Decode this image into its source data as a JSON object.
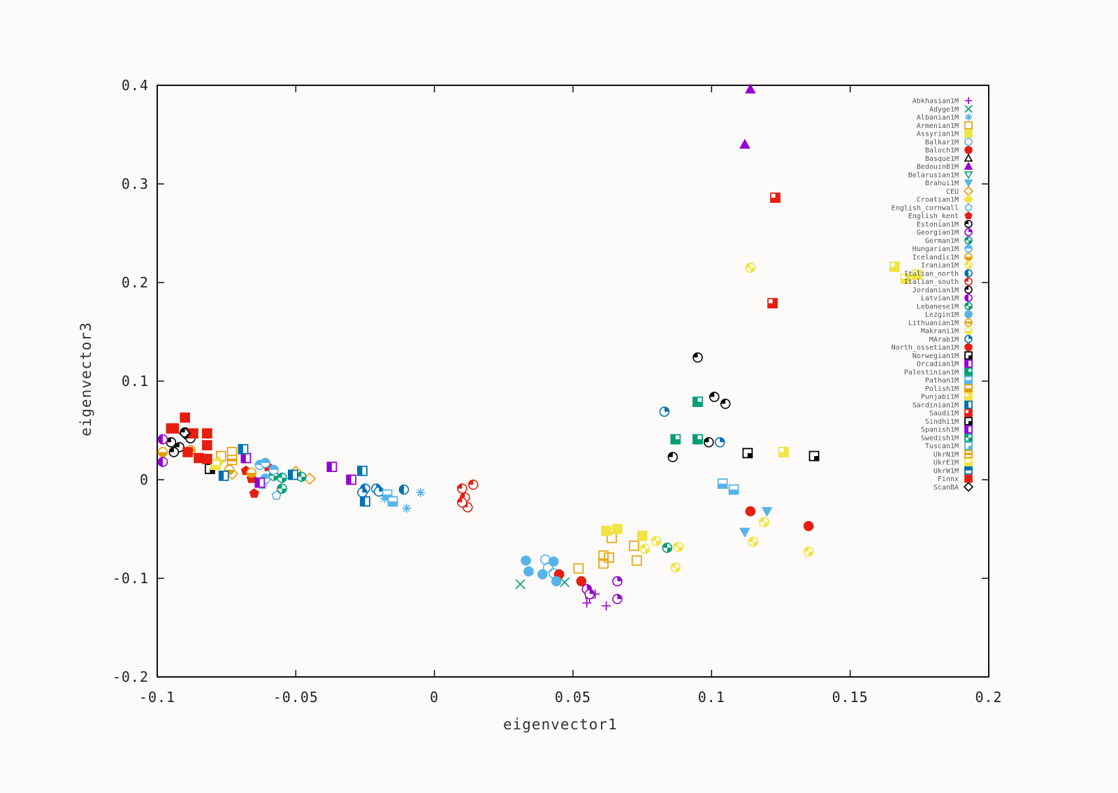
{
  "chart_data": {
    "type": "scatter",
    "title": "",
    "xlabel": "eigenvector1",
    "ylabel": "eigenvector3",
    "xlim": [
      -0.1,
      0.2
    ],
    "ylim": [
      -0.2,
      0.4
    ],
    "xticks": [
      -0.1,
      -0.05,
      0,
      0.05,
      0.1,
      0.15,
      0.2
    ],
    "xtick_labels": [
      "-0.1",
      "-0.05",
      "0",
      "0.05",
      "0.1",
      "0.15",
      "0.2"
    ],
    "yticks": [
      -0.2,
      -0.1,
      0,
      0.1,
      0.2,
      0.3,
      0.4
    ],
    "ytick_labels": [
      "-0.2",
      "-0.1",
      "0",
      "0.1",
      "0.2",
      "0.3",
      "0.4"
    ],
    "grid": false,
    "legend_position": "top-right",
    "series": [
      {
        "name": "Abkhasian1M",
        "marker": "plus",
        "color": "#9400d3",
        "points": [
          [
            0.056,
            -0.12
          ],
          [
            0.058,
            -0.116
          ],
          [
            0.055,
            -0.125
          ],
          [
            0.062,
            -0.128
          ]
        ]
      },
      {
        "name": "Adyge1M",
        "marker": "cross",
        "color": "#009e73",
        "points": [
          [
            0.031,
            -0.106
          ],
          [
            0.047,
            -0.104
          ]
        ]
      },
      {
        "name": "Albanian1M",
        "marker": "star",
        "color": "#56b4e9",
        "points": [
          [
            -0.005,
            -0.013
          ],
          [
            -0.01,
            -0.029
          ],
          [
            -0.018,
            -0.019
          ]
        ]
      },
      {
        "name": "Armenian1M",
        "marker": "square-open",
        "color": "#e69f00",
        "points": [
          [
            0.052,
            -0.09
          ],
          [
            0.061,
            -0.077
          ],
          [
            0.061,
            -0.085
          ],
          [
            0.064,
            -0.059
          ],
          [
            0.063,
            -0.079
          ],
          [
            0.072,
            -0.067
          ],
          [
            0.073,
            -0.082
          ],
          [
            -0.077,
            0.024
          ],
          [
            -0.073,
            0.028
          ]
        ]
      },
      {
        "name": "Assyrian1M",
        "marker": "square-filled",
        "color": "#f0e442",
        "points": [
          [
            0.062,
            -0.052
          ],
          [
            0.066,
            -0.05
          ],
          [
            0.075,
            -0.057
          ]
        ]
      },
      {
        "name": "Balkar1M",
        "marker": "circle-open",
        "color": "#56b4e9",
        "points": [
          [
            0.04,
            -0.081
          ],
          [
            0.041,
            -0.089
          ],
          [
            0.043,
            -0.095
          ]
        ]
      },
      {
        "name": "Baloch1M",
        "marker": "circle-filled",
        "color": "#e51e10",
        "points": [
          [
            0.114,
            -0.032
          ],
          [
            0.135,
            -0.047
          ],
          [
            0.045,
            -0.096
          ],
          [
            0.053,
            -0.103
          ]
        ]
      },
      {
        "name": "Basque1M",
        "marker": "triangle-open",
        "color": "#000000",
        "points": []
      },
      {
        "name": "BedouinB1M",
        "marker": "triangle-filled",
        "color": "#9400d3",
        "points": [
          [
            0.114,
            0.396
          ],
          [
            0.112,
            0.34
          ]
        ]
      },
      {
        "name": "Belarusian1M",
        "marker": "triangle-down-open",
        "color": "#009e73",
        "points": []
      },
      {
        "name": "Brahui1M",
        "marker": "triangle-down-filled",
        "color": "#56b4e9",
        "points": [
          [
            0.12,
            -0.032
          ],
          [
            0.112,
            -0.053
          ]
        ]
      },
      {
        "name": "CEU",
        "marker": "diamond-open",
        "color": "#e69f00",
        "points": [
          [
            -0.05,
            0.008
          ],
          [
            -0.045,
            0.001
          ],
          [
            -0.073,
            0.006
          ]
        ]
      },
      {
        "name": "Croatian1M",
        "marker": "diamond-filled",
        "color": "#f0e442",
        "points": [
          [
            -0.078,
            0.018
          ]
        ]
      },
      {
        "name": "English_cornwall",
        "marker": "pentagon-open",
        "color": "#56b4e9",
        "points": [
          [
            -0.057,
            -0.016
          ],
          [
            -0.062,
            -0.005
          ]
        ]
      },
      {
        "name": "English_kent",
        "marker": "pentagon-filled",
        "color": "#e51e10",
        "points": [
          [
            -0.065,
            -0.014
          ],
          [
            -0.068,
            0.009
          ],
          [
            -0.066,
            0.001
          ],
          [
            -0.06,
            0.013
          ]
        ]
      },
      {
        "name": "Estonian1M",
        "marker": "circle-q1",
        "color": "#000000",
        "points": [
          [
            -0.095,
            0.038
          ],
          [
            -0.092,
            0.033
          ],
          [
            -0.09,
            0.048
          ],
          [
            -0.094,
            0.028
          ],
          [
            -0.088,
            0.042
          ]
        ]
      },
      {
        "name": "Georgian1M",
        "marker": "circle-q2",
        "color": "#9400d3",
        "points": [
          [
            0.066,
            -0.103
          ],
          [
            0.066,
            -0.121
          ],
          [
            0.055,
            -0.111
          ],
          [
            0.056,
            -0.116
          ]
        ]
      },
      {
        "name": "German1M",
        "marker": "circle-q3",
        "color": "#009e73",
        "points": [
          [
            -0.048,
            0.003
          ],
          [
            -0.055,
            -0.009
          ],
          [
            -0.058,
            0.004
          ]
        ]
      },
      {
        "name": "Hungarian1M",
        "marker": "circle-top",
        "color": "#56b4e9",
        "points": [
          [
            -0.063,
            0.015
          ],
          [
            -0.061,
            0.017
          ],
          [
            -0.058,
            0.01
          ],
          [
            -0.061,
            0.001
          ]
        ]
      },
      {
        "name": "Icelandic1M",
        "marker": "circle-bottom",
        "color": "#e69f00",
        "points": [
          [
            -0.098,
            0.028
          ],
          [
            -0.074,
            0.01
          ],
          [
            -0.066,
            0.007
          ]
        ]
      },
      {
        "name": "Iranian1M",
        "marker": "circle-diag",
        "color": "#f0e442",
        "points": [
          [
            0.114,
            0.215
          ],
          [
            0.119,
            -0.043
          ],
          [
            0.115,
            -0.063
          ],
          [
            0.135,
            -0.073
          ],
          [
            0.08,
            -0.062
          ],
          [
            0.076,
            -0.07
          ],
          [
            0.088,
            -0.068
          ],
          [
            0.087,
            -0.089
          ]
        ]
      },
      {
        "name": "Italian_north",
        "marker": "circle-left",
        "color": "#0072b2",
        "points": [
          [
            -0.011,
            -0.01
          ],
          [
            -0.025,
            -0.009
          ]
        ]
      },
      {
        "name": "Italian_south",
        "marker": "circle-q1",
        "color": "#e51e10",
        "points": [
          [
            0.01,
            -0.009
          ],
          [
            0.014,
            -0.005
          ],
          [
            0.011,
            -0.018
          ],
          [
            0.012,
            -0.028
          ],
          [
            0.01,
            -0.023
          ]
        ]
      },
      {
        "name": "Jordanian1M",
        "marker": "circle-q1",
        "color": "#000000",
        "points": [
          [
            0.095,
            0.124
          ],
          [
            0.101,
            0.084
          ],
          [
            0.105,
            0.077
          ],
          [
            0.099,
            0.038
          ],
          [
            0.086,
            0.023
          ]
        ]
      },
      {
        "name": "Latvian1M",
        "marker": "circle-left",
        "color": "#9400d3",
        "points": [
          [
            -0.098,
            0.041
          ],
          [
            -0.098,
            0.018
          ]
        ]
      },
      {
        "name": "Lebanese1M",
        "marker": "circle-diag",
        "color": "#009e73",
        "points": [
          [
            0.084,
            -0.069
          ],
          [
            -0.055,
            0.002
          ]
        ]
      },
      {
        "name": "Lezgin1M",
        "marker": "circle-filled",
        "color": "#56b4e9",
        "points": [
          [
            0.033,
            -0.082
          ],
          [
            0.034,
            -0.093
          ],
          [
            0.039,
            -0.096
          ],
          [
            0.044,
            -0.103
          ],
          [
            0.043,
            -0.083
          ]
        ]
      },
      {
        "name": "Lithuanian1M",
        "marker": "circle-band",
        "color": "#e69f00",
        "points": [
          [
            -0.088,
            0.03
          ]
        ]
      },
      {
        "name": "Makrani1M",
        "marker": "circle-bottom",
        "color": "#f0e442",
        "points": []
      },
      {
        "name": "MArab1M",
        "marker": "circle-q2",
        "color": "#0072b2",
        "points": [
          [
            0.083,
            0.069
          ],
          [
            0.103,
            0.038
          ],
          [
            -0.026,
            -0.013
          ],
          [
            -0.021,
            -0.009
          ],
          [
            -0.02,
            -0.012
          ]
        ]
      },
      {
        "name": "North_ossetian1M",
        "marker": "circle-filled",
        "color": "#e51e10",
        "points": []
      },
      {
        "name": "Norwegian1M",
        "marker": "square-q4",
        "color": "#000000",
        "points": [
          [
            0.113,
            0.027
          ],
          [
            0.137,
            0.024
          ],
          [
            -0.081,
            0.011
          ]
        ]
      },
      {
        "name": "Orcadian1M",
        "marker": "square-left",
        "color": "#9400d3",
        "points": [
          [
            -0.037,
            0.013
          ],
          [
            -0.03,
            0.0
          ],
          [
            -0.068,
            0.022
          ],
          [
            -0.063,
            -0.003
          ]
        ]
      },
      {
        "name": "Palestinian1M",
        "marker": "square-q2",
        "color": "#009e73",
        "points": [
          [
            0.095,
            0.079
          ],
          [
            0.087,
            0.041
          ],
          [
            0.095,
            0.041
          ]
        ]
      },
      {
        "name": "Pathan1M",
        "marker": "square-bottom",
        "color": "#56b4e9",
        "points": [
          [
            0.104,
            -0.004
          ],
          [
            0.108,
            -0.01
          ],
          [
            -0.017,
            -0.015
          ],
          [
            -0.015,
            -0.022
          ]
        ]
      },
      {
        "name": "Polish1M",
        "marker": "square-bottom",
        "color": "#e69f00",
        "points": []
      },
      {
        "name": "Punjabi1M",
        "marker": "square-q1",
        "color": "#f0e442",
        "points": [
          [
            0.126,
            0.028
          ],
          [
            0.166,
            0.216
          ],
          [
            0.17,
            0.204
          ],
          [
            0.174,
            0.208
          ]
        ]
      },
      {
        "name": "Sardinian1M",
        "marker": "square-left",
        "color": "#0072b2",
        "points": [
          [
            -0.026,
            0.009
          ],
          [
            -0.025,
            -0.022
          ],
          [
            -0.069,
            0.031
          ],
          [
            -0.076,
            0.004
          ],
          [
            -0.051,
            0.005
          ]
        ]
      },
      {
        "name": "Saudi1M",
        "marker": "square-q1",
        "color": "#e51e10",
        "points": [
          [
            0.123,
            0.286
          ],
          [
            0.122,
            0.179
          ],
          [
            -0.094,
            0.052
          ]
        ]
      },
      {
        "name": "Sindhi1M",
        "marker": "square-q4",
        "color": "#000000",
        "points": []
      },
      {
        "name": "Spanish1M",
        "marker": "square-left",
        "color": "#9400d3",
        "points": []
      },
      {
        "name": "Swedish1M",
        "marker": "square-diag",
        "color": "#009e73",
        "points": []
      },
      {
        "name": "Tuscan1M",
        "marker": "square-q4",
        "color": "#56b4e9",
        "points": []
      },
      {
        "name": "UkrN1M",
        "marker": "square-band",
        "color": "#e69f00",
        "points": [
          [
            -0.073,
            0.02
          ]
        ]
      },
      {
        "name": "UkrE1M",
        "marker": "square-bottom",
        "color": "#f0e442",
        "points": [
          [
            -0.079,
            0.015
          ]
        ]
      },
      {
        "name": "UkrW1M",
        "marker": "square-top",
        "color": "#0072b2",
        "points": []
      },
      {
        "name": "Finnx",
        "marker": "square-filled",
        "color": "#e51e10",
        "points": [
          [
            -0.09,
            0.063
          ],
          [
            -0.095,
            0.052
          ],
          [
            -0.087,
            0.047
          ],
          [
            -0.082,
            0.047
          ],
          [
            -0.082,
            0.035
          ],
          [
            -0.089,
            0.028
          ],
          [
            -0.085,
            0.022
          ],
          [
            -0.082,
            0.021
          ]
        ]
      },
      {
        "name": "ScanBA",
        "marker": "diamond-open",
        "color": "#000000",
        "points": [
          [
            -0.09,
            0.047
          ]
        ]
      }
    ]
  }
}
